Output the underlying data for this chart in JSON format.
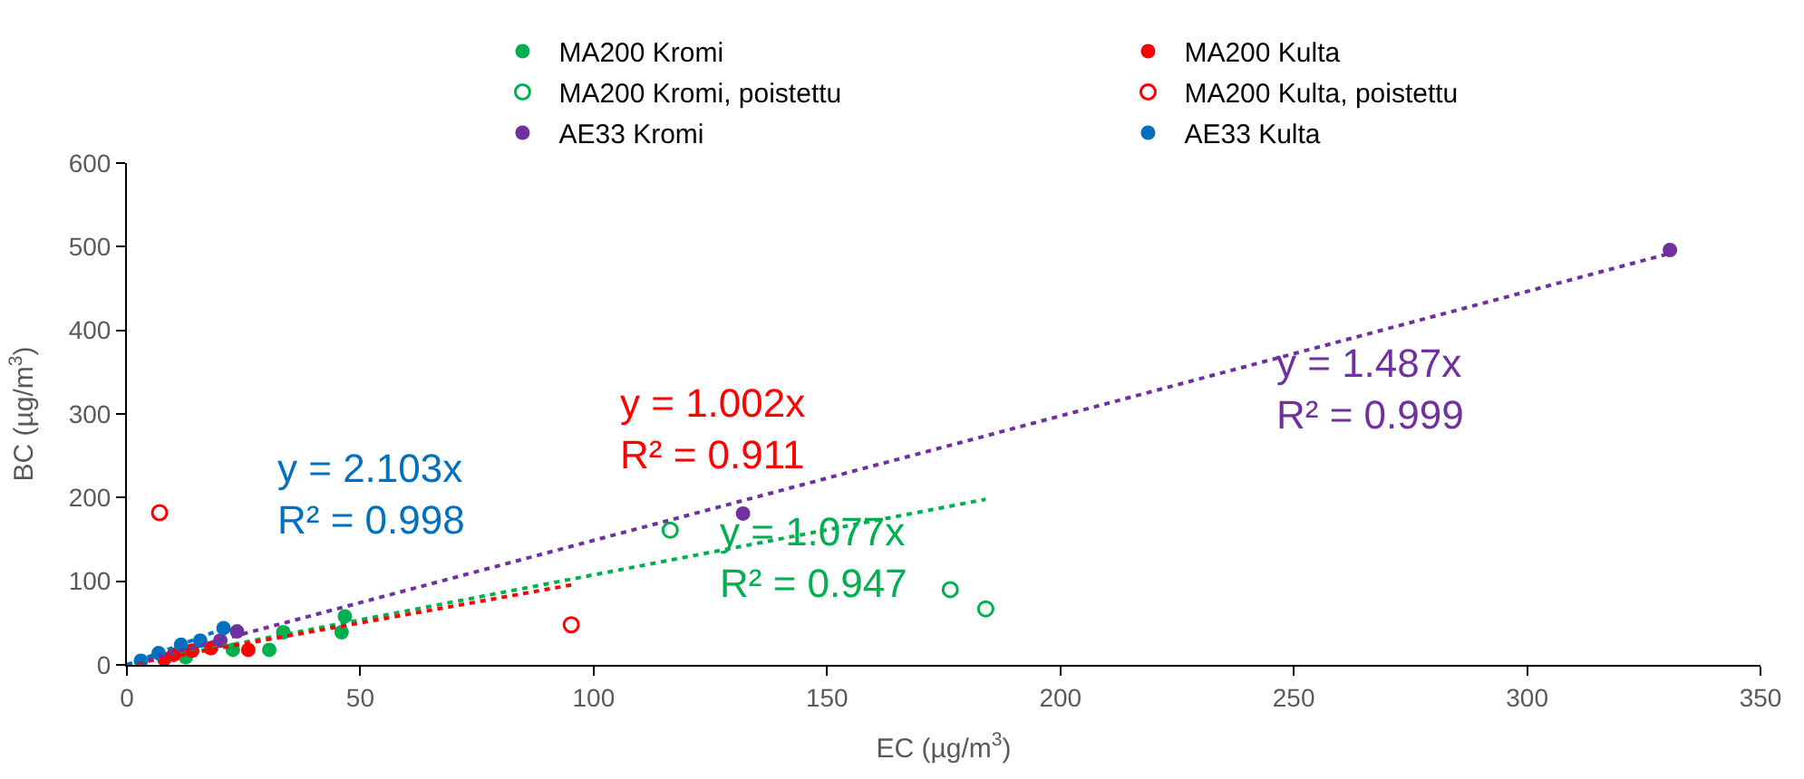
{
  "chart_data": {
    "type": "scatter",
    "xlabel": "EC (µg/m$^{3}$)",
    "ylabel": "BC (µg/m$^{3}$)",
    "xlim": [
      0,
      350
    ],
    "xticks": [
      0,
      50,
      100,
      150,
      200,
      250,
      300,
      350
    ],
    "ylim": [
      0,
      600
    ],
    "yticks": [
      0,
      100,
      200,
      300,
      400,
      500,
      600
    ],
    "grid": false,
    "legend": "top",
    "marker": "circle",
    "series": [
      {
        "name": "MA200 Kromi",
        "color": "#00b050",
        "x": [
          46.7,
          46,
          33.5,
          30.5,
          22.7,
          12.6
        ],
        "values": [
          58,
          39,
          39,
          18,
          18,
          9
        ]
      },
      {
        "name": "MA200 Kulta",
        "color": "#ff0000",
        "x": [
          26,
          14,
          8,
          10,
          18
        ],
        "values": [
          18,
          17,
          7,
          12,
          20
        ]
      },
      {
        "name": "MA200 Kromi, poistettu",
        "color": "#00b050",
        "marker": "circle-open",
        "x": [
          116.4,
          176.4,
          184
        ],
        "values": [
          161,
          90,
          67
        ]
      },
      {
        "name": "MA200 Kulta, poistettu",
        "color": "#ff0000",
        "marker": "circle-open",
        "x": [
          7,
          95.2
        ],
        "values": [
          182,
          48
        ]
      },
      {
        "name": "AE33 Kromi",
        "color": "#7030a0",
        "x": [
          330.6,
          132,
          23.6,
          20
        ],
        "values": [
          496,
          181,
          40,
          29
        ]
      },
      {
        "name": "AE33 Kulta",
        "color": "#0070c0",
        "x": [
          20.7,
          15.7,
          11.6,
          6.8,
          3
        ],
        "values": [
          44,
          29,
          24,
          14,
          5
        ]
      },
      {
        "type": "line",
        "color": "#00b050",
        "marker": "none",
        "line_style": "dotted",
        "x": [
          0,
          184
        ],
        "values": [
          0,
          198
        ]
      },
      {
        "type": "line",
        "color": "#ff0000",
        "marker": "none",
        "line_style": "dotted",
        "x": [
          0,
          95.6
        ],
        "values": [
          0,
          96
        ]
      },
      {
        "type": "line",
        "color": "#7030a0",
        "marker": "none",
        "line_style": "dotted",
        "x": [
          0,
          330.6
        ],
        "values": [
          0,
          492
        ]
      },
      {
        "type": "line",
        "color": "#0070c0",
        "marker": "none",
        "line_style": "dotted",
        "x": [
          0,
          21
        ],
        "values": [
          0,
          44
        ]
      }
    ],
    "annotations": [
      "y = 1.077x\nR² = 0.947",
      "y = 1.002x\nR² = 0.911",
      "y = 1.487x\nR² = 0.999",
      "y = 2.103x\nR² = 0.998"
    ]
  }
}
